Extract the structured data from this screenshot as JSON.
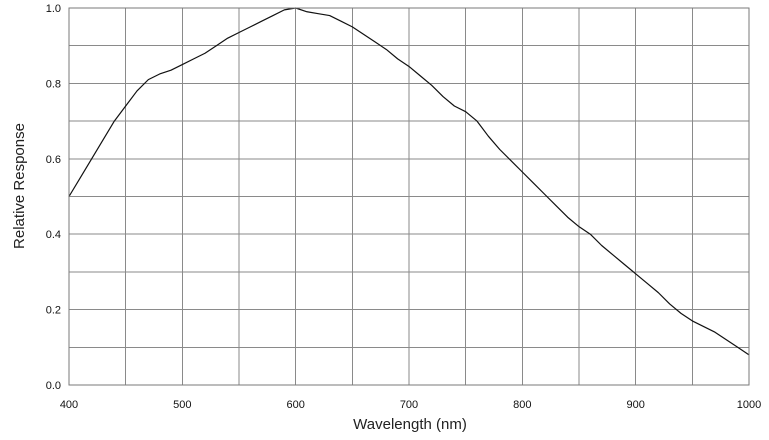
{
  "chart_data": {
    "type": "line",
    "title": "",
    "xlabel": "Wavelength (nm)",
    "ylabel": "Relative Response",
    "xlim": [
      400,
      1000
    ],
    "ylim": [
      0.0,
      1.0
    ],
    "grid": true,
    "x_ticks": [
      400,
      500,
      600,
      700,
      800,
      900,
      1000
    ],
    "x_tick_labels": [
      "400",
      "500",
      "600",
      "700",
      "800",
      "900",
      "1000"
    ],
    "x_minor_step": 50,
    "y_ticks": [
      0.0,
      0.2,
      0.4,
      0.6,
      0.8,
      1.0
    ],
    "y_tick_labels": [
      "0.0",
      "0.2",
      "0.4",
      "0.6",
      "0.8",
      "1.0"
    ],
    "y_minor_step": 0.1,
    "colors": {
      "line": "#111111",
      "grid": "#8a8a8a",
      "frame": "#7a7a7a",
      "background": "#ffffff"
    },
    "series": [
      {
        "x": [
          400,
          410,
          420,
          430,
          440,
          450,
          460,
          470,
          480,
          490,
          500,
          510,
          520,
          530,
          540,
          550,
          560,
          570,
          580,
          590,
          600,
          610,
          620,
          630,
          640,
          650,
          660,
          670,
          680,
          690,
          700,
          710,
          720,
          730,
          740,
          750,
          760,
          770,
          780,
          790,
          800,
          810,
          820,
          830,
          840,
          850,
          860,
          870,
          880,
          890,
          900,
          910,
          920,
          930,
          940,
          950,
          960,
          970,
          980,
          990,
          1000
        ],
        "y": [
          0.5,
          0.55,
          0.6,
          0.65,
          0.7,
          0.74,
          0.78,
          0.81,
          0.825,
          0.835,
          0.85,
          0.865,
          0.88,
          0.9,
          0.92,
          0.935,
          0.95,
          0.965,
          0.98,
          0.995,
          1.0,
          0.99,
          0.985,
          0.98,
          0.965,
          0.95,
          0.93,
          0.91,
          0.89,
          0.865,
          0.845,
          0.82,
          0.795,
          0.765,
          0.74,
          0.725,
          0.7,
          0.66,
          0.625,
          0.595,
          0.565,
          0.535,
          0.505,
          0.475,
          0.445,
          0.42,
          0.4,
          0.37,
          0.345,
          0.32,
          0.295,
          0.27,
          0.245,
          0.215,
          0.19,
          0.17,
          0.155,
          0.14,
          0.12,
          0.1,
          0.08
        ]
      }
    ]
  }
}
